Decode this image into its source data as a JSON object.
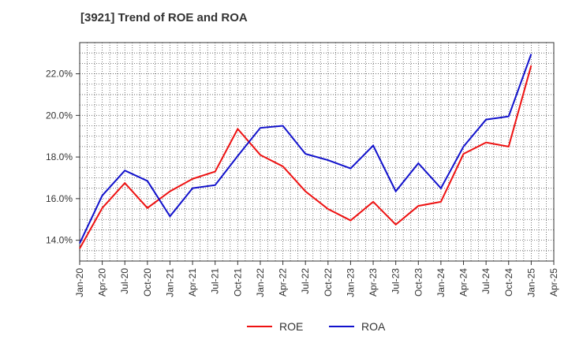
{
  "chart_data": {
    "type": "line",
    "title": "[3921]  Trend of ROE and ROA",
    "x": [
      "Jan-20",
      "Apr-20",
      "Jul-20",
      "Oct-20",
      "Jan-21",
      "Apr-21",
      "Jul-21",
      "Oct-21",
      "Jan-22",
      "Apr-22",
      "Jul-22",
      "Oct-22",
      "Jan-23",
      "Apr-23",
      "Jul-23",
      "Oct-23",
      "Jan-24",
      "Apr-24",
      "Jul-24",
      "Oct-24",
      "Jan-25"
    ],
    "x_ticks": [
      "Jan-20",
      "Apr-20",
      "Jul-20",
      "Oct-20",
      "Jan-21",
      "Apr-21",
      "Jul-21",
      "Oct-21",
      "Jan-22",
      "Apr-22",
      "Jul-22",
      "Oct-22",
      "Jan-23",
      "Apr-23",
      "Jul-23",
      "Oct-23",
      "Jan-24",
      "Apr-24",
      "Jul-24",
      "Oct-24",
      "Jan-25",
      "Apr-25"
    ],
    "series": [
      {
        "name": "ROE",
        "color": "#ee1111",
        "values": [
          13.6,
          15.55,
          16.75,
          15.55,
          16.35,
          16.95,
          17.3,
          19.35,
          18.1,
          17.55,
          16.35,
          15.5,
          14.95,
          15.85,
          14.75,
          15.65,
          15.85,
          18.15,
          18.7,
          18.5,
          22.4
        ]
      },
      {
        "name": "ROA",
        "color": "#1111cc",
        "values": [
          13.85,
          16.15,
          17.35,
          16.85,
          15.15,
          16.5,
          16.65,
          18.05,
          19.4,
          19.5,
          18.15,
          17.85,
          17.45,
          18.55,
          16.35,
          17.7,
          16.5,
          18.5,
          19.8,
          19.95,
          22.95
        ]
      }
    ],
    "y_ticks": [
      "14.0%",
      "16.0%",
      "18.0%",
      "20.0%",
      "22.0%"
    ],
    "y_tick_values": [
      14,
      16,
      18,
      20,
      22
    ],
    "ylim": [
      13.0,
      23.5
    ],
    "grid": true,
    "legend_placement": "bottom-center"
  }
}
